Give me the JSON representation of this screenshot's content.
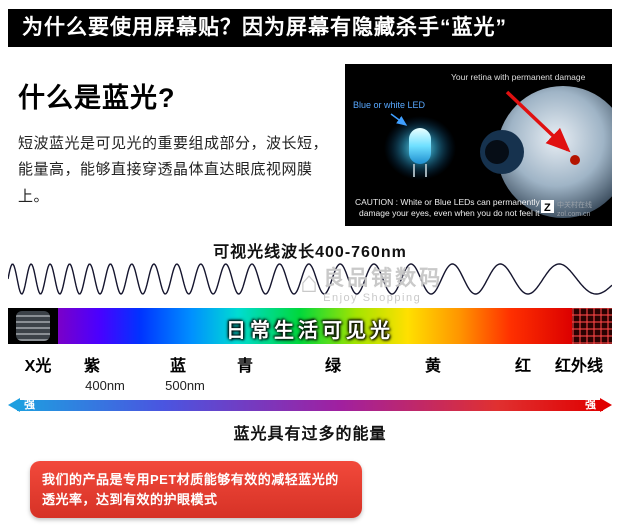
{
  "banner": {
    "title": "为什么要使用屏幕贴？因为屏幕有隐藏杀手“蓝光”"
  },
  "intro": {
    "heading": "什么是蓝光?",
    "body": "短波蓝光是可见光的重要组成部分，波长短，能量高，能够直接穿透晶体直达眼底视网膜上。"
  },
  "eye_diagram": {
    "led_label": "Blue or white LED",
    "retina_label": "Your retina with permanent damage",
    "caution_line1": "CAUTION : White or Blue LEDs can permanently",
    "caution_line2": "damage your eyes, even when you do not feel it",
    "logo_letter": "Z",
    "watermark_cn": "中关村在线",
    "watermark_url": "zol.com.cn"
  },
  "spectrum": {
    "title": "可视光线波长400-760nm",
    "bar_label": "日常生活可见光",
    "labels": [
      "X光",
      "紫",
      "蓝",
      "青",
      "绿",
      "黄",
      "红",
      "红外线"
    ],
    "wavelength_marks": [
      "400nm",
      "500nm"
    ],
    "arrow_left": "强",
    "arrow_right": "强",
    "caption": "蓝光具有过多的能量"
  },
  "shop_watermark": {
    "name": "良品铺数码",
    "subtitle": "Enjoy Shopping"
  },
  "footer": {
    "text": "我们的产品是专用PET材质能够有效的减轻蓝光的透光率，达到有效的护眼模式"
  },
  "colors": {
    "banner_bg": "#000000",
    "footer_red": "#e23b2e"
  }
}
